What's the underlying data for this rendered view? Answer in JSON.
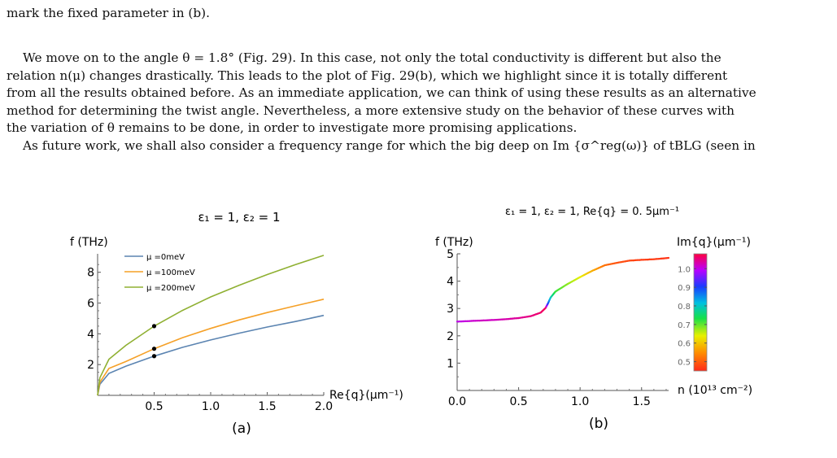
{
  "paper": {
    "top_line": "mark the fixed parameter in (b).",
    "paragraph1": [
      "We move on to the angle θ = 1.8° (Fig. 29). In this case, not only the total conductivity is different but also the",
      "relation n(μ) changes drastically. This leads to the plot of Fig. 29(b), which we highlight since it is totally different",
      "from all the results obtained before. As an immediate application, we can think of using these results as an alternative",
      "method for determining the twist angle. Nevertheless, a more extensive study on the behavior of these curves with",
      "the variation of θ remains to be done, in order to investigate more promising applications."
    ],
    "paragraph2": "As future work, we shall also consider a frequency range for which the big deep on Im {σ^reg(ω)} of tBLG (seen in"
  },
  "chart_data": [
    {
      "type": "line",
      "panel_label": "(a)",
      "title": "ε₁ = 1,  ε₂ = 1",
      "xlabel": "Re{q}(μm⁻¹)",
      "ylabel": "f (THz)",
      "xlim": [
        0,
        2.0
      ],
      "ylim": [
        0,
        9.2
      ],
      "xticks": [
        "0.5",
        "1.0",
        "1.5",
        "2.0"
      ],
      "yticks": [
        "2",
        "4",
        "6",
        "8"
      ],
      "legend_position": "top-left",
      "series": [
        {
          "name": "μ =0meV",
          "color": "#5b84b1",
          "x": [
            0,
            0.02,
            0.1,
            0.25,
            0.5,
            0.75,
            1.0,
            1.25,
            1.5,
            1.75,
            2.0
          ],
          "y": [
            0,
            0.72,
            1.43,
            1.9,
            2.55,
            3.12,
            3.6,
            4.04,
            4.44,
            4.8,
            5.2
          ]
        },
        {
          "name": "μ =100meV",
          "color": "#f5a027",
          "x": [
            0,
            0.02,
            0.1,
            0.25,
            0.5,
            0.75,
            1.0,
            1.25,
            1.5,
            1.75,
            2.0
          ],
          "y": [
            0,
            0.85,
            1.75,
            2.2,
            3.03,
            3.75,
            4.35,
            4.9,
            5.38,
            5.82,
            6.25
          ]
        },
        {
          "name": "μ =200meV",
          "color": "#8fb032",
          "x": [
            0,
            0.02,
            0.1,
            0.25,
            0.5,
            0.75,
            1.0,
            1.25,
            1.5,
            1.75,
            2.0
          ],
          "y": [
            0,
            1.15,
            2.35,
            3.25,
            4.5,
            5.52,
            6.4,
            7.15,
            7.85,
            8.5,
            9.1
          ]
        }
      ],
      "marked_points": [
        {
          "x": 0.5,
          "y": 2.55
        },
        {
          "x": 0.5,
          "y": 3.03
        },
        {
          "x": 0.5,
          "y": 4.5
        }
      ]
    },
    {
      "type": "line",
      "panel_label": "(b)",
      "title": "ε₁ = 1,  ε₂ = 1,  Re{q} = 0. 5μm⁻¹",
      "xlabel": "n (10¹³ cm⁻²)",
      "ylabel": "f (THz)",
      "xlim": [
        0,
        1.72
      ],
      "ylim": [
        0,
        5
      ],
      "xticks": [
        "0.0",
        "0.5",
        "1.0",
        "1.5"
      ],
      "yticks": [
        "1",
        "2",
        "3",
        "4",
        "5"
      ],
      "colorbar": {
        "label": "Im{q}(μm⁻¹)",
        "range": [
          0.45,
          1.08
        ],
        "ticks": [
          "0.5",
          "0.6",
          "0.7",
          "0.8",
          "0.9",
          "1.0"
        ]
      },
      "series": [
        {
          "x": [
            0.0,
            0.1,
            0.2,
            0.3,
            0.4,
            0.5,
            0.6,
            0.68,
            0.72,
            0.74,
            0.76,
            0.8,
            0.9,
            1.0,
            1.1,
            1.2,
            1.3,
            1.4,
            1.5,
            1.6,
            1.72
          ],
          "y": [
            2.52,
            2.54,
            2.56,
            2.58,
            2.61,
            2.65,
            2.72,
            2.85,
            3.02,
            3.2,
            3.4,
            3.62,
            3.9,
            4.15,
            4.38,
            4.58,
            4.67,
            4.75,
            4.78,
            4.8,
            4.85
          ],
          "imq": [
            1.0,
            1.01,
            1.02,
            1.02,
            1.03,
            1.04,
            1.05,
            1.06,
            1.07,
            0.9,
            0.8,
            0.72,
            0.68,
            0.64,
            0.58,
            0.52,
            0.49,
            0.48,
            0.47,
            0.47,
            0.46
          ]
        }
      ]
    }
  ]
}
